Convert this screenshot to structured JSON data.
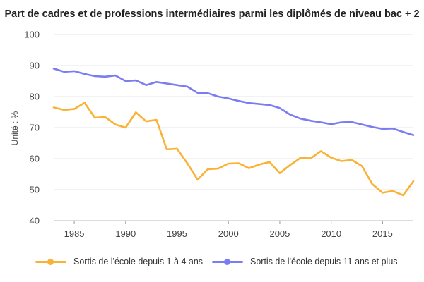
{
  "chart_data": {
    "type": "line",
    "title": "Part de cadres et de professions intermédiaires parmi les diplômés de niveau bac + 2",
    "ylabel": "Unité : %",
    "xlabel": "",
    "xlim": [
      1983,
      2018
    ],
    "ylim": [
      40,
      100
    ],
    "x_ticks": [
      1985,
      1990,
      1995,
      2000,
      2005,
      2010,
      2015
    ],
    "y_ticks": [
      40,
      50,
      60,
      70,
      80,
      90,
      100
    ],
    "grid": "horizontal",
    "legend_position": "bottom",
    "x": [
      1983,
      1984,
      1985,
      1986,
      1987,
      1988,
      1989,
      1990,
      1991,
      1992,
      1993,
      1994,
      1995,
      1996,
      1997,
      1998,
      1999,
      2000,
      2001,
      2002,
      2003,
      2004,
      2005,
      2006,
      2007,
      2008,
      2009,
      2010,
      2011,
      2012,
      2013,
      2014,
      2015,
      2016,
      2017,
      2018
    ],
    "series": [
      {
        "name": "Sortis de l'école depuis 1 à 4 ans",
        "color": "#f9b233",
        "values": [
          76.5,
          75.7,
          76.0,
          78.0,
          73.2,
          73.4,
          71.0,
          70.0,
          74.9,
          72.0,
          72.5,
          63.0,
          63.2,
          58.5,
          53.2,
          56.6,
          56.8,
          58.4,
          58.5,
          56.9,
          58.1,
          58.9,
          55.3,
          57.9,
          60.2,
          60.1,
          62.4,
          60.3,
          59.2,
          59.6,
          57.6,
          51.8,
          49.0,
          49.6,
          48.2,
          52.7
        ]
      },
      {
        "name": "Sortis de l'école depuis 11 ans et plus",
        "color": "#7b7cf2",
        "values": [
          89.0,
          88.0,
          88.2,
          87.3,
          86.6,
          86.4,
          86.8,
          85.0,
          85.2,
          83.7,
          84.7,
          84.2,
          83.7,
          83.2,
          81.2,
          81.1,
          80.0,
          79.4,
          78.6,
          77.9,
          77.6,
          77.3,
          76.3,
          74.2,
          72.9,
          72.2,
          71.7,
          71.1,
          71.7,
          71.8,
          71.0,
          70.2,
          69.6,
          69.7,
          68.6,
          67.6
        ]
      }
    ]
  }
}
